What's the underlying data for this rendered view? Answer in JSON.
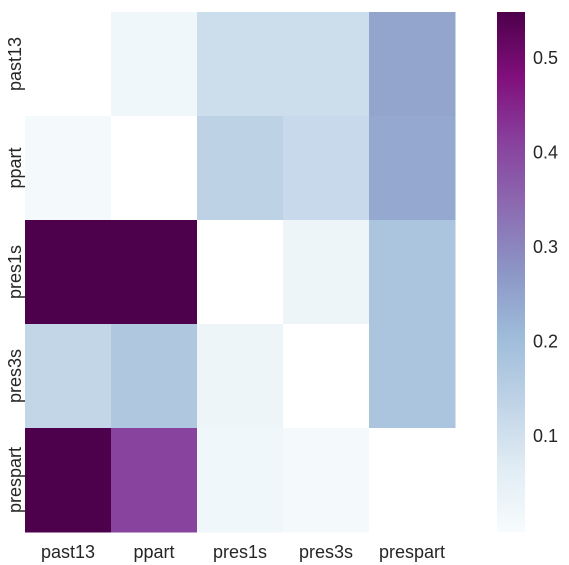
{
  "chart_data": {
    "type": "heatmap",
    "x_categories": [
      "past13",
      "ppart",
      "pres1s",
      "pres3s",
      "prespart"
    ],
    "y_categories": [
      "past13",
      "ppart",
      "pres1s",
      "pres3s",
      "prespart"
    ],
    "values": [
      [
        null,
        0.02,
        0.11,
        0.11,
        0.25
      ],
      [
        0.01,
        null,
        0.14,
        0.12,
        0.24
      ],
      [
        0.55,
        0.55,
        null,
        0.03,
        0.18
      ],
      [
        0.13,
        0.17,
        0.03,
        null,
        0.18
      ],
      [
        0.55,
        0.41,
        0.02,
        0.01,
        null
      ]
    ],
    "colormap": "BuPu",
    "colorbar": {
      "range": [
        0.0,
        0.55
      ],
      "ticks": [
        0.1,
        0.2,
        0.3,
        0.4,
        0.5
      ],
      "tick_labels": [
        "0.1",
        "0.2",
        "0.3",
        "0.4",
        "0.5"
      ]
    },
    "colors": {
      "low": "#f7fcfd",
      "high": "#4d004b",
      "missing": "#ffffff",
      "text": "#262626"
    },
    "grid": false
  }
}
